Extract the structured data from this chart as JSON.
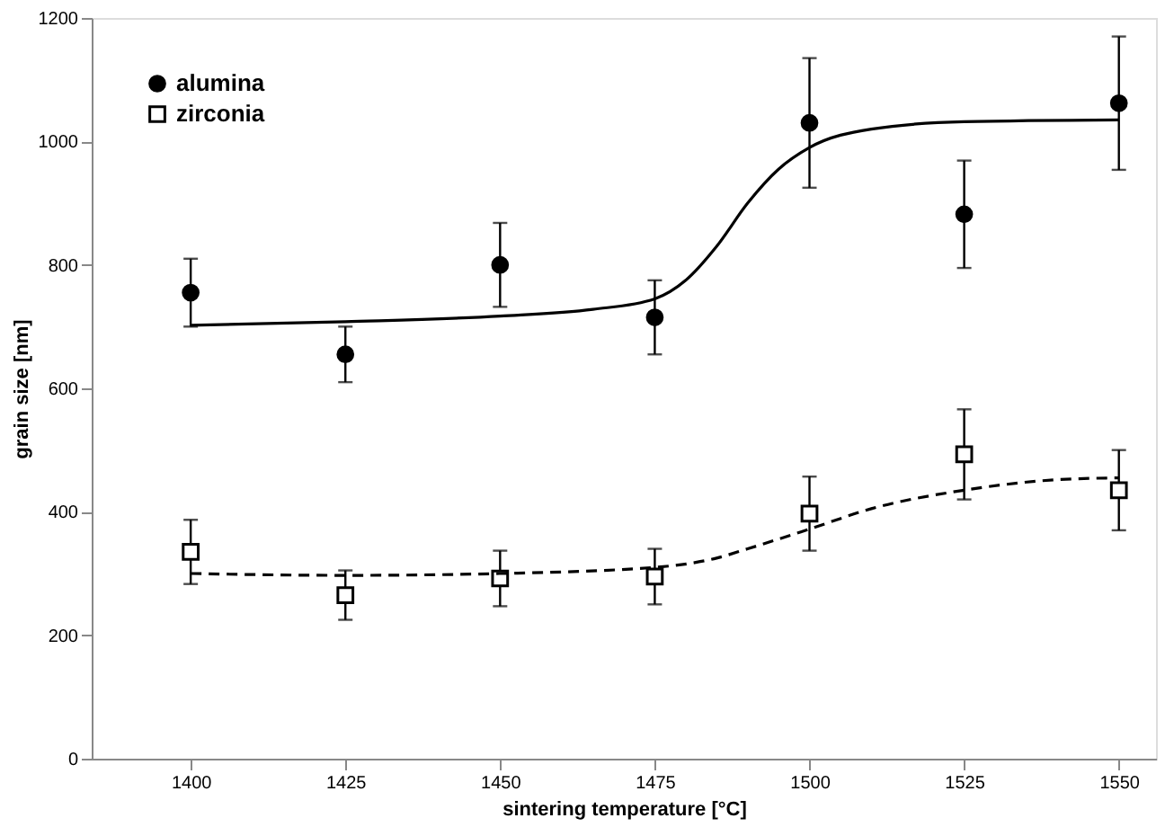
{
  "chart_data": {
    "type": "scatter",
    "xlabel": "sintering temperature [°C]",
    "ylabel": "grain size [nm]",
    "x": [
      1400,
      1425,
      1450,
      1475,
      1500,
      1525,
      1550
    ],
    "xlim": [
      1384,
      1556
    ],
    "xticks": [
      1400,
      1425,
      1450,
      1475,
      1500,
      1525,
      1550
    ],
    "ylim": [
      0,
      1200
    ],
    "yticks": [
      0,
      200,
      400,
      600,
      800,
      1000,
      1200
    ],
    "grid": false,
    "legend": "top left",
    "series": [
      {
        "name": "alumina",
        "marker": "circle",
        "color": "#000000",
        "values": [
          755,
          655,
          800,
          715,
          1030,
          882,
          1062
        ],
        "errors": [
          55,
          45,
          68,
          60,
          105,
          87,
          108
        ]
      },
      {
        "name": "zirconia",
        "marker": "square",
        "color": "#000000",
        "values": [
          335,
          265,
          292,
          295,
          397,
          493,
          435
        ],
        "errors": [
          52,
          40,
          45,
          45,
          60,
          73,
          65
        ]
      },
      {
        "type": "line",
        "marker": "none",
        "line_style": "solid",
        "color": "#000000",
        "x": [
          1400,
          1425,
          1450,
          1465,
          1475,
          1480,
          1485,
          1490,
          1495,
          1500,
          1510,
          1525,
          1550
        ],
        "values": [
          702,
          708,
          717,
          728,
          745,
          775,
          830,
          900,
          955,
          990,
          1020,
          1032,
          1035
        ]
      },
      {
        "type": "line",
        "marker": "none",
        "line_style": "dashed",
        "color": "#000000",
        "x": [
          1400,
          1425,
          1450,
          1475,
          1485,
          1490,
          1500,
          1510,
          1525,
          1540,
          1550
        ],
        "values": [
          300,
          297,
          300,
          310,
          325,
          340,
          372,
          405,
          435,
          452,
          455
        ]
      }
    ]
  }
}
